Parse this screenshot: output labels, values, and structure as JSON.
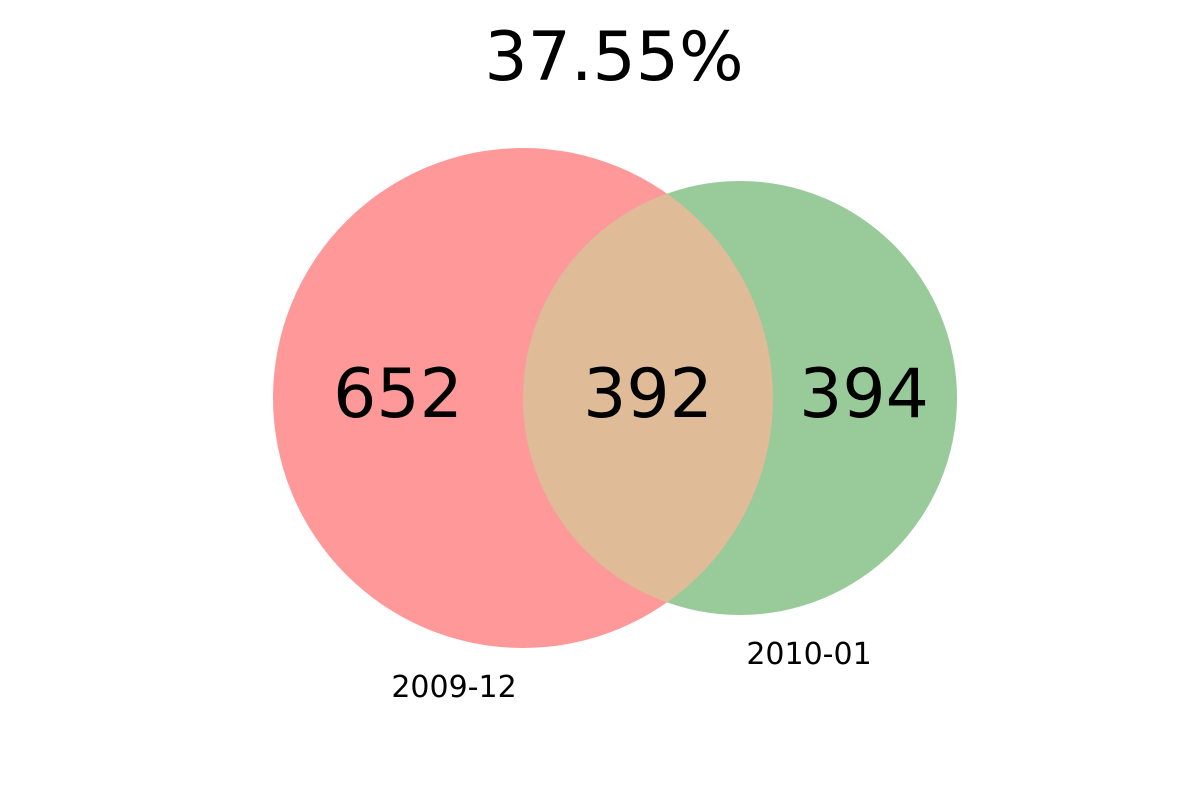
{
  "title": "37.55%",
  "sets": {
    "left": {
      "label": "2009-12",
      "color": "#ff9999"
    },
    "right": {
      "label": "2010-01",
      "color": "#99ca99"
    }
  },
  "regions": {
    "left_only": "652",
    "intersection": "392",
    "right_only": "394"
  },
  "intersection_color": "#e0bb98",
  "chart_data": {
    "type": "venn",
    "title": "37.55%",
    "sets": [
      "2009-12",
      "2010-01"
    ],
    "counts": {
      "2009-12 only": 652,
      "both": 392,
      "2010-01 only": 394
    }
  }
}
